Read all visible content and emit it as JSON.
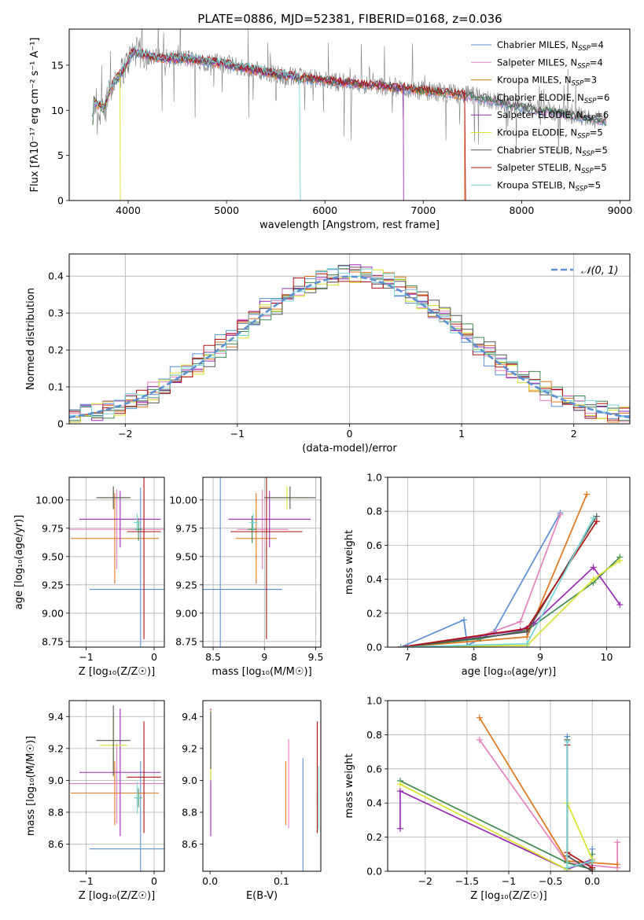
{
  "figure_title": "PLATE=0886, MJD=52381, FIBERID=0168, z=0.036",
  "colors": [
    "#5b8fd6",
    "#e87fbe",
    "#e0761a",
    "#3f8a52",
    "#9b2ab5",
    "#d8e32a",
    "#555555",
    "#b01010",
    "#74d6d6"
  ],
  "chart_data": [
    {
      "id": "spectrum",
      "type": "line",
      "title": "PLATE=0886, MJD=52381, FIBERID=0168, z=0.036",
      "xlabel": "wavelength [Angstrom, rest frame]",
      "ylabel": "Flux [fλ10⁻¹⁷ erg cm⁻² s⁻¹ A⁻¹]",
      "xlim": [
        3400,
        9100
      ],
      "ylim": [
        0,
        19
      ],
      "xticks": [
        4000,
        5000,
        6000,
        7000,
        8000,
        9000
      ],
      "yticks": [
        0,
        5,
        10,
        15
      ],
      "grid": false,
      "legend_position": "top-right",
      "data_trace_color": "#808080",
      "continuum_points": {
        "x": [
          3650,
          3750,
          3850,
          3950,
          4050,
          4300,
          4600,
          5000,
          5500,
          6000,
          6500,
          7000,
          7500,
          8000,
          8500,
          8850
        ],
        "y": [
          11,
          10.2,
          13,
          14.5,
          16.5,
          15.8,
          15.7,
          15.1,
          14,
          13.3,
          12.8,
          12.2,
          11.6,
          10.4,
          9.5,
          8.8
        ]
      },
      "series": [
        {
          "name": "Chabrier MILES",
          "nssp": 4,
          "color": "#5b8fd6"
        },
        {
          "name": "Salpeter MILES",
          "nssp": 4,
          "color": "#e87fbe"
        },
        {
          "name": "Kroupa MILES",
          "nssp": 3,
          "color": "#e0761a"
        },
        {
          "name": "Chabrier ELODIE",
          "nssp": 6,
          "color": "#3f8a52"
        },
        {
          "name": "Salpeter ELODIE",
          "nssp": 6,
          "color": "#9b2ab5"
        },
        {
          "name": "Kroupa ELODIE",
          "nssp": 5,
          "color": "#d8e32a"
        },
        {
          "name": "Chabrier STELIB",
          "nssp": 5,
          "color": "#555555"
        },
        {
          "name": "Salpeter STELIB",
          "nssp": 5,
          "color": "#b01010"
        },
        {
          "name": "Kroupa STELIB",
          "nssp": 5,
          "color": "#74d6d6"
        }
      ],
      "model_cutoffs": [
        {
          "series": 2,
          "x": 7420
        },
        {
          "series": 7,
          "x": 7430
        },
        {
          "series": 5,
          "x": 3920
        },
        {
          "series": 4,
          "x": 6800
        },
        {
          "series": 8,
          "x": 5750
        }
      ]
    },
    {
      "id": "residuals",
      "type": "line",
      "xlabel": "(data-model)/error",
      "ylabel": "Normed distribution",
      "xlim": [
        -2.5,
        2.5
      ],
      "ylim": [
        0,
        0.46
      ],
      "xticks": [
        -2,
        -1,
        0,
        1,
        2
      ],
      "yticks": [
        0.0,
        0.1,
        0.2,
        0.3,
        0.4
      ],
      "grid": true,
      "legend_position": "top-right",
      "reference_curve": {
        "name": "𝒩(0, 1)",
        "color": "#5b8fd6",
        "style": "dashed"
      },
      "bin_width": 0.1
    },
    {
      "id": "age_vs_Z",
      "type": "scatter",
      "xlabel": "Z [log₁₀(Z/Z☉)]",
      "ylabel": "age  [log₁₀(age/yr)]",
      "xlim": [
        -1.25,
        0.15
      ],
      "ylim": [
        8.7,
        10.2
      ],
      "xticks": [
        -1,
        0
      ],
      "yticks": [
        8.75,
        9.0,
        9.25,
        9.5,
        9.75,
        10.0
      ],
      "grid": true,
      "points": [
        {
          "series": 0,
          "x": -0.2,
          "xerr": 0.75,
          "y": 9.21,
          "yerr": 0.9
        },
        {
          "series": 1,
          "x": -0.55,
          "xerr": 0.7,
          "y": 9.74,
          "yerr": 0.35
        },
        {
          "series": 2,
          "x": -0.58,
          "xerr": 0.65,
          "y": 9.66,
          "yerr": 0.4
        },
        {
          "series": 3,
          "x": -0.23,
          "xerr": 0.05,
          "y": 9.74,
          "yerr": 0.1
        },
        {
          "series": 4,
          "x": -0.5,
          "xerr": 0.6,
          "y": 9.83,
          "yerr": 0.25
        },
        {
          "series": 5,
          "x": -0.6,
          "xerr": 0.25,
          "y": 10.02,
          "yerr": 0.1
        },
        {
          "series": 6,
          "x": -0.6,
          "xerr": 0.25,
          "y": 10.02,
          "yerr": 0.1
        },
        {
          "series": 7,
          "x": -0.15,
          "xerr": 0.25,
          "y": 9.72,
          "yerr": 0.95
        },
        {
          "series": 8,
          "x": -0.25,
          "xerr": 0.05,
          "y": 9.8,
          "yerr": 0.08
        }
      ]
    },
    {
      "id": "age_vs_mass",
      "type": "scatter",
      "xlabel": "mass [log₁₀(M/M☉)]",
      "ylabel": "",
      "xlim": [
        8.4,
        9.55
      ],
      "ylim": [
        8.7,
        10.2
      ],
      "xticks": [
        8.5,
        9.0,
        9.5
      ],
      "yticks": [
        8.75,
        9.0,
        9.25,
        9.5,
        9.75,
        10.0
      ],
      "grid": true,
      "points": [
        {
          "series": 0,
          "x": 8.57,
          "xerr": 0.6,
          "y": 9.21,
          "yerr": 1.07
        },
        {
          "series": 1,
          "x": 8.98,
          "xerr": 0.25,
          "y": 9.74,
          "yerr": 0.35
        },
        {
          "series": 2,
          "x": 8.92,
          "xerr": 0.2,
          "y": 9.66,
          "yerr": 0.4
        },
        {
          "series": 3,
          "x": 8.88,
          "xerr": 0.04,
          "y": 9.74,
          "yerr": 0.12
        },
        {
          "series": 4,
          "x": 9.05,
          "xerr": 0.4,
          "y": 9.83,
          "yerr": 0.25
        },
        {
          "series": 5,
          "x": 9.22,
          "xerr": 0.2,
          "y": 10.02,
          "yerr": 0.1
        },
        {
          "series": 6,
          "x": 9.25,
          "xerr": 0.25,
          "y": 10.02,
          "yerr": 0.1
        },
        {
          "series": 7,
          "x": 9.02,
          "xerr": 0.35,
          "y": 9.72,
          "yerr": 0.95
        },
        {
          "series": 8,
          "x": 8.89,
          "xerr": 0.04,
          "y": 9.8,
          "yerr": 0.08
        }
      ]
    },
    {
      "id": "mass_weight_vs_age",
      "type": "line",
      "xlabel": "age  [log₁₀(age/yr)]",
      "ylabel": "mass weight",
      "xlim": [
        6.7,
        10.35
      ],
      "ylim": [
        0,
        1.0
      ],
      "xticks": [
        7,
        8,
        9,
        10
      ],
      "yticks": [
        0.0,
        0.2,
        0.4,
        0.6,
        0.8,
        1.0
      ],
      "grid": true,
      "series": [
        {
          "series": 0,
          "x": [
            6.9,
            7.85,
            7.9,
            8.3,
            9.3
          ],
          "y": [
            0.0,
            0.16,
            0.01,
            0.09,
            0.79
          ]
        },
        {
          "series": 1,
          "x": [
            6.9,
            8.0,
            8.7,
            9.3
          ],
          "y": [
            0.0,
            0.05,
            0.15,
            0.78
          ]
        },
        {
          "series": 2,
          "x": [
            6.9,
            8.8,
            9.7
          ],
          "y": [
            0.0,
            0.06,
            0.9
          ]
        },
        {
          "series": 3,
          "x": [
            6.9,
            8.1,
            8.8,
            9.8,
            10.2
          ],
          "y": [
            0.0,
            0.05,
            0.1,
            0.38,
            0.53
          ]
        },
        {
          "series": 4,
          "x": [
            6.9,
            8.7,
            8.9,
            9.8,
            10.2
          ],
          "y": [
            0.0,
            0.1,
            0.14,
            0.47,
            0.25
          ]
        },
        {
          "series": 5,
          "x": [
            6.9,
            8.8,
            9.8,
            10.2
          ],
          "y": [
            0.0,
            0.01,
            0.4,
            0.51
          ]
        },
        {
          "series": 6,
          "x": [
            6.9,
            8.8,
            9.85
          ],
          "y": [
            0.0,
            0.09,
            0.77
          ]
        },
        {
          "series": 7,
          "x": [
            6.9,
            8.8,
            9.85
          ],
          "y": [
            0.0,
            0.11,
            0.74
          ]
        },
        {
          "series": 8,
          "x": [
            6.9,
            8.8,
            9.8
          ],
          "y": [
            0.0,
            0.02,
            0.76
          ]
        }
      ]
    },
    {
      "id": "mass_vs_Z",
      "type": "scatter",
      "xlabel": "Z [log₁₀(Z/Z☉)]",
      "ylabel": "mass [log₁₀(M/M☉)]",
      "xlim": [
        -1.25,
        0.15
      ],
      "ylim": [
        8.43,
        9.5
      ],
      "xticks": [
        -1,
        0
      ],
      "yticks": [
        8.6,
        8.8,
        9.0,
        9.2,
        9.4
      ],
      "grid": true,
      "points": [
        {
          "series": 0,
          "x": -0.2,
          "xerr": 0.75,
          "y": 8.57,
          "yerr": 0.55
        },
        {
          "series": 1,
          "x": -0.55,
          "xerr": 0.7,
          "y": 8.98,
          "yerr": 0.25
        },
        {
          "series": 2,
          "x": -0.58,
          "xerr": 0.65,
          "y": 8.92,
          "yerr": 0.2
        },
        {
          "series": 3,
          "x": -0.23,
          "xerr": 0.05,
          "y": 8.89,
          "yerr": 0.06
        },
        {
          "series": 4,
          "x": -0.5,
          "xerr": 0.6,
          "y": 9.05,
          "yerr": 0.4
        },
        {
          "series": 5,
          "x": -0.6,
          "xerr": 0.2,
          "y": 9.22,
          "yerr": 0.2
        },
        {
          "series": 6,
          "x": -0.6,
          "xerr": 0.25,
          "y": 9.25,
          "yerr": 0.22
        },
        {
          "series": 7,
          "x": -0.15,
          "xerr": 0.25,
          "y": 9.02,
          "yerr": 0.35
        },
        {
          "series": 8,
          "x": -0.25,
          "xerr": 0.05,
          "y": 8.89,
          "yerr": 0.1
        }
      ]
    },
    {
      "id": "mass_vs_ebv",
      "type": "scatter",
      "xlabel": "E(B-V)",
      "ylabel": "",
      "xlim": [
        -0.01,
        0.155
      ],
      "ylim": [
        8.43,
        9.5
      ],
      "xticks": [
        0.0,
        0.1
      ],
      "yticks": [
        8.6,
        8.8,
        9.0,
        9.2,
        9.4
      ],
      "grid": false,
      "points": [
        {
          "series": 0,
          "x": 0.13,
          "y": 8.57,
          "yerr": 0.57
        },
        {
          "series": 1,
          "x": 0.11,
          "y": 8.98,
          "yerr": 0.28
        },
        {
          "series": 2,
          "x": 0.106,
          "y": 8.92,
          "yerr": 0.2
        },
        {
          "series": 3,
          "x": 0.15,
          "y": 8.89,
          "yerr": 0.06
        },
        {
          "series": 4,
          "x": 0.001,
          "y": 9.05,
          "yerr": 0.4
        },
        {
          "series": 5,
          "x": 0.001,
          "y": 9.22,
          "yerr": 0.22
        },
        {
          "series": 6,
          "x": 0.001,
          "y": 9.25,
          "yerr": 0.18
        },
        {
          "series": 7,
          "x": 0.15,
          "y": 9.02,
          "yerr": 0.35
        },
        {
          "series": 8,
          "x": 0.152,
          "y": 8.89,
          "yerr": 0.2
        }
      ]
    },
    {
      "id": "mass_weight_vs_Z",
      "type": "line",
      "xlabel": "Z [log₁₀(Z/Z☉)]",
      "ylabel": "mass weight",
      "xlim": [
        -2.45,
        0.45
      ],
      "ylim": [
        0,
        1.0
      ],
      "xticks": [
        -2.0,
        -1.5,
        -1.0,
        -0.5,
        0.0
      ],
      "yticks": [
        0.0,
        0.2,
        0.4,
        0.6,
        0.8,
        1.0
      ],
      "grid": true,
      "series": [
        {
          "series": 0,
          "x": [
            -0.3,
            -0.3,
            0.0,
            0.0
          ],
          "y": [
            0.79,
            0.02,
            0.05,
            0.13
          ]
        },
        {
          "series": 1,
          "x": [
            -1.35,
            -0.3,
            0.3,
            0.3
          ],
          "y": [
            0.77,
            0.05,
            0.02,
            0.17
          ]
        },
        {
          "series": 2,
          "x": [
            -1.35,
            -0.3,
            0.3
          ],
          "y": [
            0.9,
            0.06,
            0.04
          ]
        },
        {
          "series": 3,
          "x": [
            -2.3,
            -0.3,
            0.0,
            0.0
          ],
          "y": [
            0.53,
            0.05,
            0.01,
            0.1
          ]
        },
        {
          "series": 4,
          "x": [
            -2.3,
            -2.3,
            -0.3,
            0.0
          ],
          "y": [
            0.25,
            0.47,
            0.01,
            0.07
          ]
        },
        {
          "series": 5,
          "x": [
            -2.3,
            -0.3,
            -0.3,
            0.0
          ],
          "y": [
            0.51,
            0.01,
            0.4,
            0.07
          ]
        },
        {
          "series": 6,
          "x": [
            -0.3,
            -0.3,
            0.0
          ],
          "y": [
            0.77,
            0.09,
            0.0
          ]
        },
        {
          "series": 7,
          "x": [
            -0.3,
            -0.3,
            0.0
          ],
          "y": [
            0.74,
            0.11,
            0.02
          ]
        },
        {
          "series": 8,
          "x": [
            -0.3,
            -0.3,
            0.0
          ],
          "y": [
            0.76,
            0.02,
            0.06
          ]
        }
      ]
    }
  ]
}
